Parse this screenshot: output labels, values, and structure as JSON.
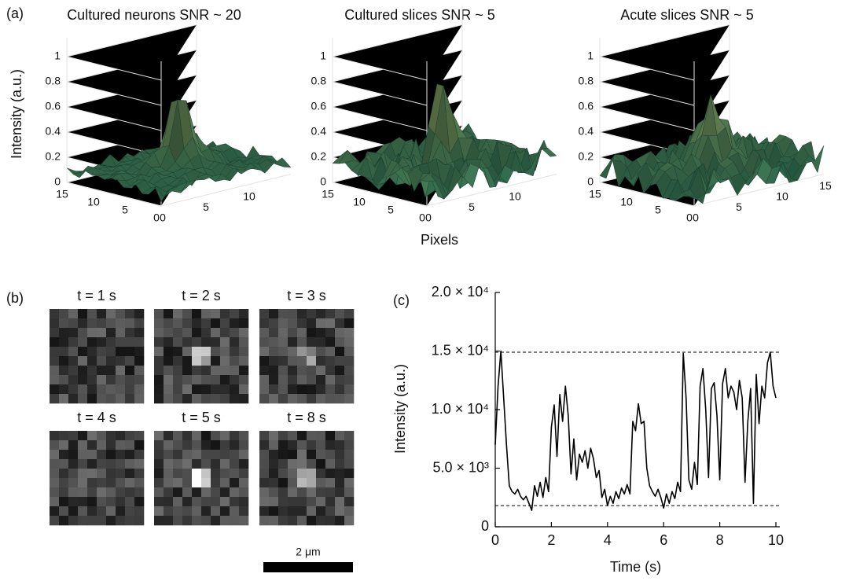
{
  "chart_data": [
    {
      "type": "surface",
      "panel": "(a)",
      "title": "Cultured neurons SNR ~ 20",
      "xlabel": "Pixels",
      "zlabel": "Intensity (a.u.)",
      "xticks": [
        0,
        5,
        10
      ],
      "yticks": [
        15,
        10,
        5,
        0
      ],
      "zticks": [
        0,
        0.2,
        0.4,
        0.6,
        0.8,
        1
      ]
    },
    {
      "type": "surface",
      "title": "Cultured slices SNR ~ 5",
      "xticks": [
        0,
        5,
        10
      ],
      "yticks": [
        15,
        10,
        5,
        0
      ],
      "zticks": [
        0,
        0.2,
        0.4,
        0.6,
        0.8,
        1
      ]
    },
    {
      "type": "surface",
      "title": "Acute slices SNR ~ 5",
      "xticks": [
        0,
        5,
        10,
        15
      ],
      "yticks": [
        15,
        10,
        5,
        0
      ],
      "zticks": [
        0,
        0.2,
        0.4,
        0.6,
        0.8,
        1
      ]
    },
    {
      "type": "image-grid",
      "panel": "(b)",
      "frames": [
        "t = 1 s",
        "t = 2 s",
        "t = 3 s",
        "t = 4 s",
        "t = 5 s",
        "t = 8 s"
      ],
      "scale_bar": "2 μm"
    },
    {
      "type": "line",
      "panel": "(c)",
      "xlabel": "Time (s)",
      "ylabel": "Intensity (a.u.)",
      "xlim": [
        0,
        10
      ],
      "ylim": [
        0,
        20000
      ],
      "xticks": [
        0,
        2,
        4,
        6,
        8,
        10
      ],
      "yticks": [
        0,
        {
          "value": 5000,
          "label": "5.0 × 10³"
        },
        {
          "value": 10000,
          "label": "1.0 × 10⁴"
        },
        {
          "value": 15000,
          "label": "1.5 × 10⁴"
        },
        {
          "value": 20000,
          "label": "2.0 × 10⁴"
        }
      ],
      "hlines": [
        14900,
        1800
      ],
      "series": [
        {
          "color": "#000000",
          "x": [
            0,
            0.1,
            0.2,
            0.3,
            0.4,
            0.5,
            0.6,
            0.7,
            0.8,
            0.9,
            1,
            1.1,
            1.2,
            1.3,
            1.4,
            1.5,
            1.6,
            1.7,
            1.8,
            1.9,
            2,
            2.1,
            2.2,
            2.3,
            2.4,
            2.5,
            2.6,
            2.7,
            2.8,
            2.9,
            3,
            3.1,
            3.2,
            3.3,
            3.4,
            3.5,
            3.6,
            3.7,
            3.8,
            3.9,
            4,
            4.1,
            4.2,
            4.3,
            4.4,
            4.5,
            4.6,
            4.7,
            4.8,
            4.9,
            5,
            5.1,
            5.2,
            5.3,
            5.4,
            5.5,
            5.6,
            5.7,
            5.8,
            5.9,
            6,
            6.1,
            6.2,
            6.3,
            6.4,
            6.5,
            6.6,
            6.7,
            6.8,
            6.9,
            7,
            7.1,
            7.2,
            7.3,
            7.4,
            7.5,
            7.6,
            7.7,
            7.8,
            7.9,
            8,
            8.1,
            8.2,
            8.3,
            8.4,
            8.5,
            8.6,
            8.7,
            8.8,
            8.9,
            9,
            9.1,
            9.2,
            9.3,
            9.4,
            9.5,
            9.6,
            9.7,
            9.8,
            9.9,
            10
          ],
          "values": [
            7000,
            12000,
            15000,
            11000,
            7000,
            3500,
            3000,
            2800,
            3200,
            2600,
            2300,
            2600,
            2000,
            1400,
            3500,
            2600,
            3800,
            2500,
            4200,
            3000,
            8500,
            10400,
            6000,
            11300,
            9000,
            12000,
            9500,
            4500,
            7500,
            4000,
            6200,
            5500,
            6500,
            5000,
            6700,
            5800,
            4200,
            4800,
            2500,
            3200,
            1800,
            2600,
            2000,
            3000,
            2400,
            3300,
            2800,
            3600,
            2800,
            9000,
            8200,
            10500,
            8800,
            9000,
            5000,
            3500,
            3000,
            2600,
            3200,
            2500,
            1600,
            2800,
            2000,
            3000,
            2400,
            3800,
            3000,
            14800,
            11000,
            4000,
            3200,
            5500,
            3600,
            12000,
            13500,
            10000,
            4200,
            11800,
            12300,
            9500,
            4000,
            12200,
            13500,
            11000,
            12000,
            11500,
            10000,
            12500,
            11000,
            3800,
            9000,
            11800,
            2000,
            13000,
            8800,
            12000,
            11000,
            14000,
            14900,
            12000,
            11000
          ]
        }
      ]
    }
  ]
}
